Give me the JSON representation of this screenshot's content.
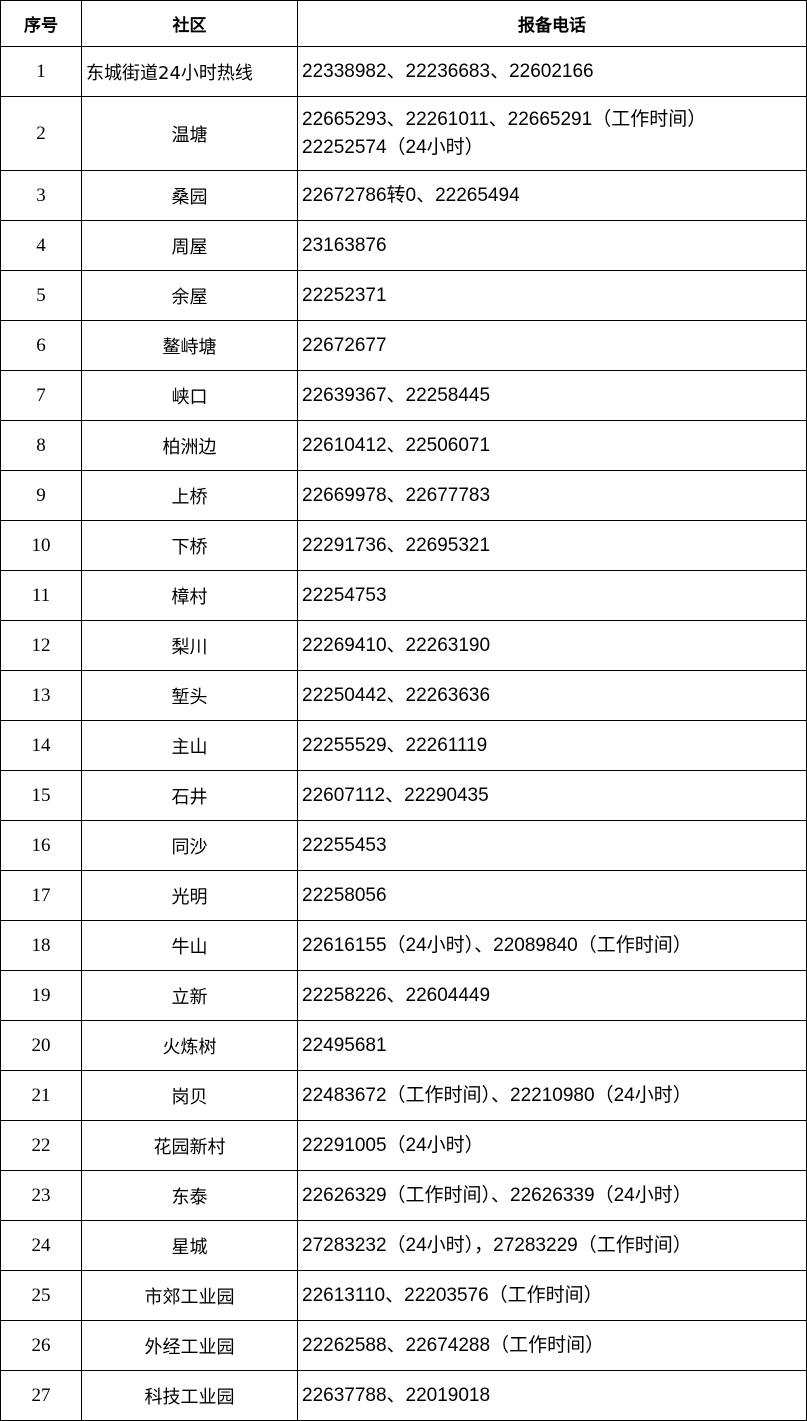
{
  "table": {
    "headers": [
      "序号",
      "社区",
      "报备电话"
    ],
    "rows": [
      {
        "no": "1",
        "community": "东城街道24小时热线",
        "phone": "22338982、22236683、22602166"
      },
      {
        "no": "2",
        "community": "温塘",
        "phone": "22665293、22261011、22665291（工作时间）",
        "phone2": "22252574（24小时）"
      },
      {
        "no": "3",
        "community": "桑园",
        "phone": "22672786转0、22265494"
      },
      {
        "no": "4",
        "community": "周屋",
        "phone": "23163876"
      },
      {
        "no": "5",
        "community": "余屋",
        "phone": "22252371"
      },
      {
        "no": "6",
        "community": "鳌峙塘",
        "phone": "22672677"
      },
      {
        "no": "7",
        "community": "峡口",
        "phone": "22639367、22258445"
      },
      {
        "no": "8",
        "community": "柏洲边",
        "phone": "22610412、22506071"
      },
      {
        "no": "9",
        "community": "上桥",
        "phone": "22669978、22677783"
      },
      {
        "no": "10",
        "community": "下桥",
        "phone": "22291736、22695321"
      },
      {
        "no": "11",
        "community": "樟村",
        "phone": "22254753"
      },
      {
        "no": "12",
        "community": "梨川",
        "phone": "22269410、22263190"
      },
      {
        "no": "13",
        "community": "堑头",
        "phone": "22250442、22263636"
      },
      {
        "no": "14",
        "community": "主山",
        "phone": "22255529、22261119"
      },
      {
        "no": "15",
        "community": "石井",
        "phone": "22607112、22290435"
      },
      {
        "no": "16",
        "community": "同沙",
        "phone": "22255453"
      },
      {
        "no": "17",
        "community": "光明",
        "phone": "22258056"
      },
      {
        "no": "18",
        "community": "牛山",
        "phone": "22616155（24小时）、22089840（工作时间）"
      },
      {
        "no": "19",
        "community": "立新",
        "phone": "22258226、22604449"
      },
      {
        "no": "20",
        "community": "火炼树",
        "phone": "22495681"
      },
      {
        "no": "21",
        "community": "岗贝",
        "phone": "22483672（工作时间）、22210980（24小时）"
      },
      {
        "no": "22",
        "community": "花园新村",
        "phone": "22291005（24小时）"
      },
      {
        "no": "23",
        "community": "东泰",
        "phone": "22626329（工作时间）、22626339（24小时）"
      },
      {
        "no": "24",
        "community": "星城",
        "phone": "27283232（24小时），27283229（工作时间）"
      },
      {
        "no": "25",
        "community": "市郊工业园",
        "phone": "22613110、22203576（工作时间）"
      },
      {
        "no": "26",
        "community": "外经工业园",
        "phone": "22262588、22674288（工作时间）"
      },
      {
        "no": "27",
        "community": "科技工业园",
        "phone": "22637788、22019018"
      }
    ]
  }
}
